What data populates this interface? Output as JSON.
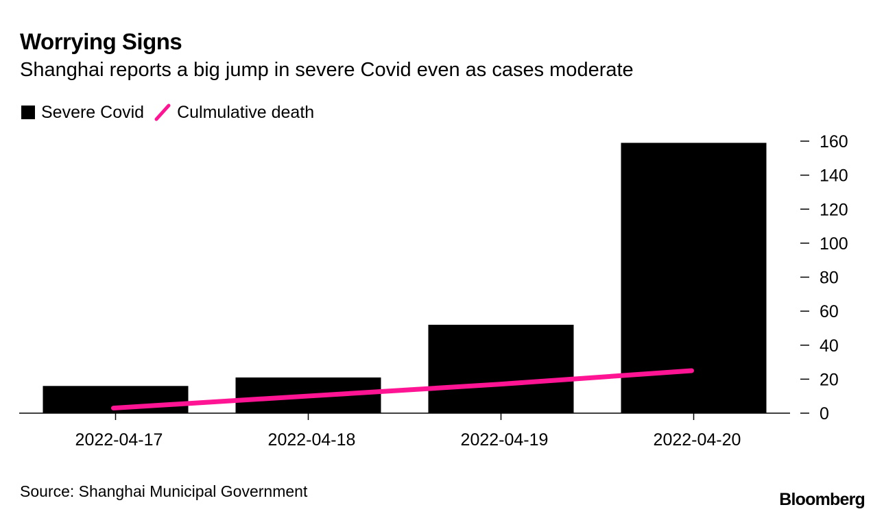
{
  "title": "Worrying Signs",
  "subtitle": "Shanghai reports a big jump in severe Covid even as cases moderate",
  "legend": [
    {
      "label": "Severe Covid",
      "color": "#000000",
      "shape": "square"
    },
    {
      "label": "Culmulative death",
      "color": "#ff1493",
      "shape": "line"
    }
  ],
  "source": "Source: Shanghai Municipal Government",
  "brand": "Bloomberg",
  "chart_data": {
    "type": "bar",
    "categories": [
      "2022-04-17",
      "2022-04-18",
      "2022-04-19",
      "2022-04-20"
    ],
    "series": [
      {
        "name": "Severe Covid",
        "type": "bar",
        "color": "#000000",
        "values": [
          16,
          21,
          52,
          159
        ]
      },
      {
        "name": "Culmulative death",
        "type": "line",
        "color": "#ff1493",
        "values": [
          3,
          10,
          17,
          25
        ]
      }
    ],
    "ylim": [
      0,
      160
    ],
    "yticks": [
      0,
      20,
      40,
      60,
      80,
      100,
      120,
      140,
      160
    ],
    "yaxis_position": "right",
    "legend_position": "top-left",
    "grid": false
  }
}
